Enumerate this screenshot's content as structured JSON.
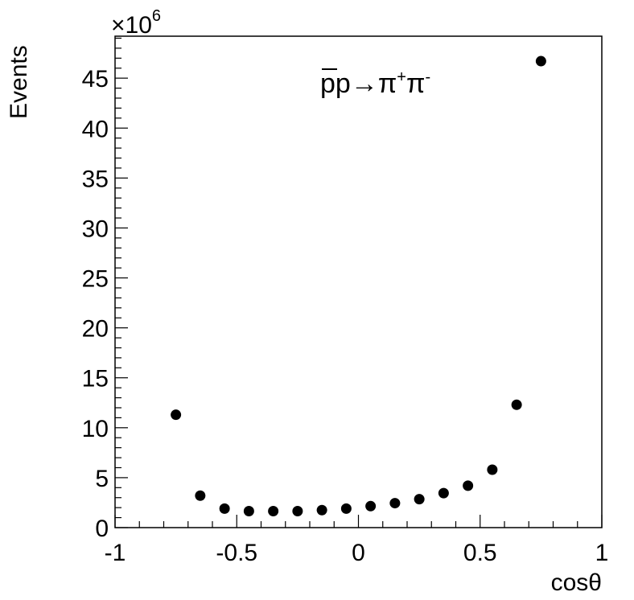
{
  "chart_data": {
    "type": "scatter",
    "xlabel": "cosθ",
    "ylabel": "Events",
    "y_multiplier": "×10",
    "y_multiplier_exp": "6",
    "xlim": [
      -1,
      1
    ],
    "ylim": [
      0,
      49.2
    ],
    "x_ticks": [
      "-1",
      "-0.5",
      "0",
      "0.5",
      "1"
    ],
    "y_ticks": [
      "0",
      "5",
      "10",
      "15",
      "20",
      "25",
      "30",
      "35",
      "40",
      "45"
    ],
    "annotation": {
      "base": "pp",
      "arrow": "→",
      "pi1": "π",
      "sup1": "+",
      "pi2": "π",
      "sup2": "-"
    },
    "grid": false,
    "x": [
      -0.75,
      -0.65,
      -0.55,
      -0.45,
      -0.35,
      -0.25,
      -0.15,
      -0.05,
      0.05,
      0.15,
      0.25,
      0.35,
      0.45,
      0.55,
      0.65,
      0.75
    ],
    "values": [
      11.3,
      3.2,
      1.9,
      1.65,
      1.65,
      1.65,
      1.75,
      1.9,
      2.15,
      2.45,
      2.85,
      3.45,
      4.2,
      5.8,
      12.3,
      46.7
    ]
  }
}
